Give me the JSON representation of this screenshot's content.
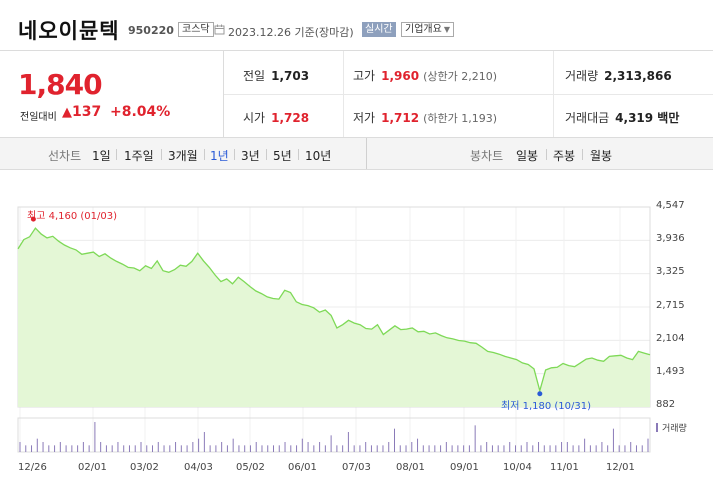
{
  "stock": {
    "name": "네오이뮨텍",
    "code": "950220",
    "market": "코스닥",
    "date": "2023.12.26 기준(장마감)",
    "live_label": "실시간",
    "info_label": "기업개요"
  },
  "quote": {
    "price": "1,840",
    "prev_label": "전일대비",
    "change": "137",
    "change_pct": "+8.04%",
    "prev_close": {
      "label": "전일",
      "value": "1,703"
    },
    "open": {
      "label": "시가",
      "value": "1,728"
    },
    "high": {
      "label": "고가",
      "value": "1,960",
      "sub": "(상한가 2,210)"
    },
    "low": {
      "label": "저가",
      "value": "1,712",
      "sub": "(하한가 1,193)"
    },
    "volume": {
      "label": "거래량",
      "value": "2,313,866"
    },
    "amount": {
      "label": "거래대금",
      "value": "4,319 백만"
    }
  },
  "tabs": {
    "line_chart": "선차트",
    "periods": [
      "1일",
      "1주일",
      "3개월",
      "1년",
      "3년",
      "5년",
      "10년"
    ],
    "active_period": "1년",
    "candle_chart": "봉차트",
    "candles": [
      "일봉",
      "주봉",
      "월봉"
    ]
  },
  "chart_data": {
    "type": "area",
    "y_ticks": [
      "4,547",
      "3,936",
      "3,325",
      "2,715",
      "2,104",
      "1,493",
      "882"
    ],
    "ylim": [
      882,
      4547
    ],
    "x_ticks": [
      "12/26",
      "02/01",
      "03/02",
      "04/03",
      "05/02",
      "06/01",
      "07/03",
      "08/01",
      "09/01",
      "10/04",
      "11/01",
      "12/01"
    ],
    "high_annotation": "최고 4,160 (01/03)",
    "low_annotation": "최저 1,180 (10/31)",
    "high_value": 4160,
    "low_value": 1180,
    "volume_label": "거래량",
    "line_color": "#7ed957",
    "fill_color": "#e4f7d6",
    "price_series": [
      3780,
      3950,
      4000,
      4160,
      4050,
      3980,
      4010,
      3920,
      3850,
      3800,
      3760,
      3680,
      3700,
      3720,
      3640,
      3690,
      3610,
      3550,
      3500,
      3440,
      3430,
      3380,
      3470,
      3420,
      3560,
      3380,
      3350,
      3400,
      3480,
      3460,
      3550,
      3700,
      3560,
      3440,
      3300,
      3180,
      3230,
      3140,
      3260,
      3180,
      3090,
      3010,
      2960,
      2900,
      2870,
      2860,
      3020,
      2980,
      2810,
      2760,
      2740,
      2700,
      2620,
      2660,
      2560,
      2330,
      2390,
      2470,
      2420,
      2390,
      2320,
      2310,
      2390,
      2210,
      2290,
      2370,
      2300,
      2310,
      2330,
      2260,
      2270,
      2220,
      2240,
      2190,
      2150,
      2130,
      2100,
      2090,
      2060,
      2050,
      1980,
      1900,
      1880,
      1850,
      1810,
      1780,
      1750,
      1690,
      1660,
      1580,
      1180,
      1560,
      1600,
      1610,
      1680,
      1640,
      1620,
      1690,
      1760,
      1780,
      1740,
      1720,
      1810,
      1820,
      1830,
      1780,
      1750,
      1900,
      1870,
      1840
    ],
    "volume_series": [
      3,
      2,
      2,
      4,
      3,
      2,
      2,
      3,
      2,
      2,
      2,
      3,
      2,
      9,
      3,
      2,
      2,
      3,
      2,
      2,
      2,
      3,
      2,
      2,
      3,
      2,
      2,
      3,
      2,
      2,
      3,
      4,
      6,
      2,
      2,
      3,
      2,
      4,
      2,
      2,
      2,
      3,
      2,
      2,
      2,
      2,
      3,
      2,
      2,
      4,
      3,
      2,
      3,
      2,
      5,
      2,
      2,
      6,
      2,
      2,
      3,
      2,
      2,
      2,
      3,
      7,
      2,
      2,
      3,
      4,
      2,
      2,
      2,
      2,
      3,
      2,
      2,
      2,
      2,
      8,
      2,
      3,
      2,
      2,
      2,
      3,
      2,
      2,
      3,
      2,
      3,
      2,
      2,
      2,
      3,
      3,
      2,
      2,
      4,
      2,
      2,
      3,
      2,
      7,
      2,
      2,
      3,
      2,
      2,
      4
    ]
  }
}
